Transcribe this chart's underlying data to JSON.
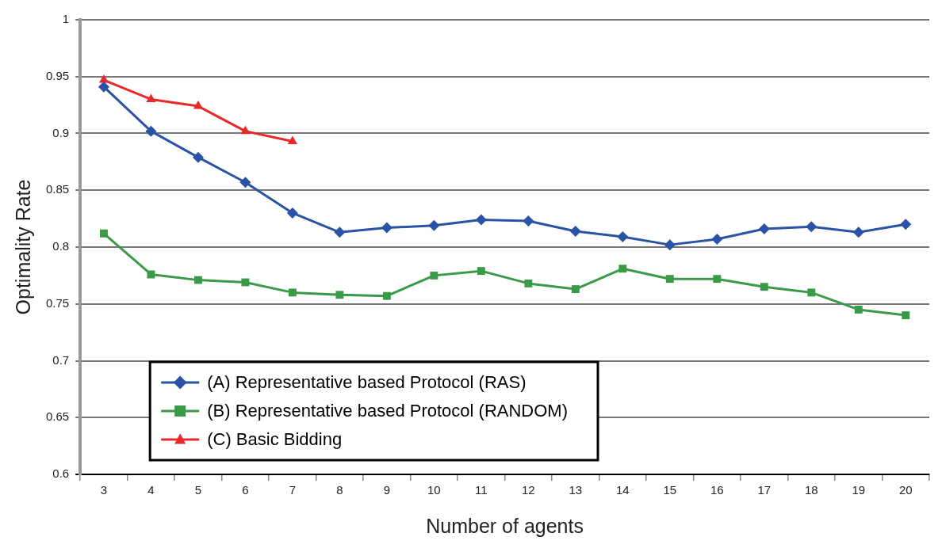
{
  "chart_data": {
    "type": "line",
    "xlabel": "Number of agents",
    "ylabel": "Optimality Rate",
    "categories": [
      "3",
      "4",
      "5",
      "6",
      "7",
      "8",
      "9",
      "10",
      "11",
      "12",
      "13",
      "14",
      "15",
      "16",
      "17",
      "18",
      "19",
      "20"
    ],
    "ylim": [
      0.6,
      1
    ],
    "yticks": [
      0.6,
      0.65,
      0.7,
      0.75,
      0.8,
      0.85,
      0.9,
      0.95,
      1
    ],
    "grid": "y",
    "legend": "bottom left",
    "line_style": "solid",
    "series": [
      {
        "name": "(A) Representative based Protocol (RAS)",
        "color": "#2a52a6",
        "marker": "diamond",
        "values": [
          0.941,
          0.902,
          0.879,
          0.857,
          0.83,
          0.813,
          0.817,
          0.819,
          0.824,
          0.823,
          0.814,
          0.809,
          0.802,
          0.807,
          0.816,
          0.818,
          0.813,
          0.82
        ]
      },
      {
        "name": "(B) Representative based Protocol (RANDOM)",
        "color": "#3a9a47",
        "marker": "square",
        "values": [
          0.812,
          0.776,
          0.771,
          0.769,
          0.76,
          0.758,
          0.757,
          0.775,
          0.779,
          0.768,
          0.763,
          0.781,
          0.772,
          0.772,
          0.765,
          0.76,
          0.745,
          0.74
        ]
      },
      {
        "name": "(C) Basic Bidding",
        "color": "#e8282b",
        "marker": "triangle",
        "values": [
          0.947,
          0.93,
          0.924,
          0.902,
          0.893,
          null,
          null,
          null,
          null,
          null,
          null,
          null,
          null,
          null,
          null,
          null,
          null,
          null
        ]
      }
    ]
  }
}
